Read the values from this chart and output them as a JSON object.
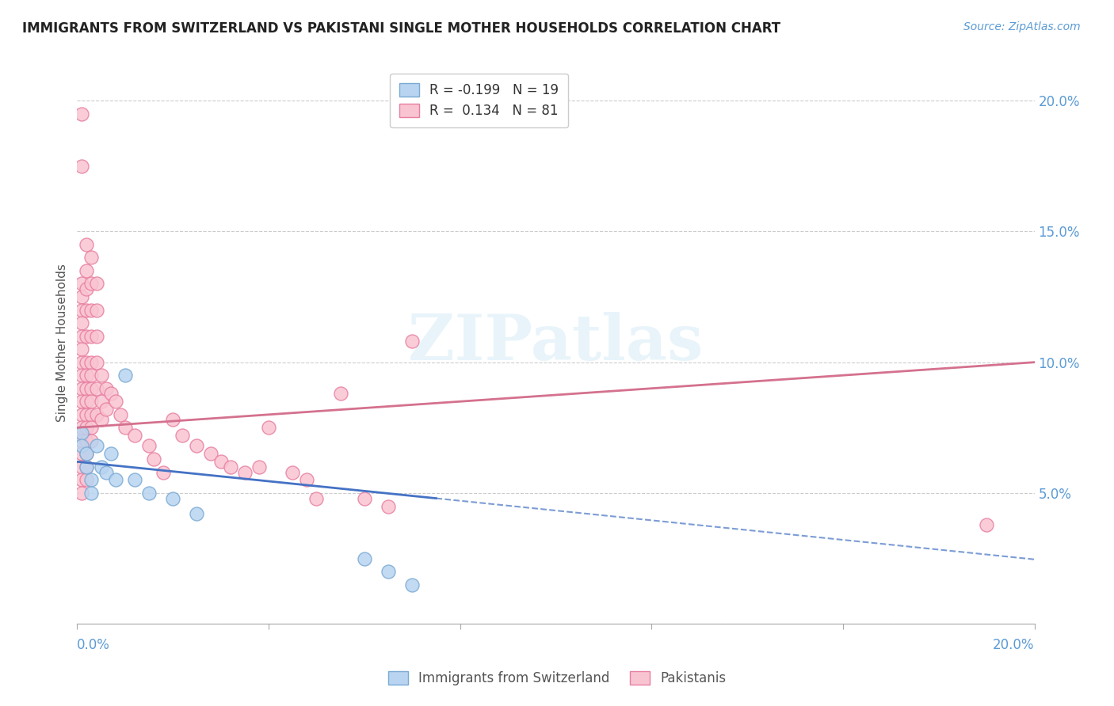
{
  "title": "IMMIGRANTS FROM SWITZERLAND VS PAKISTANI SINGLE MOTHER HOUSEHOLDS CORRELATION CHART",
  "source": "Source: ZipAtlas.com",
  "ylabel": "Single Mother Households",
  "xlim": [
    0.0,
    0.2
  ],
  "ylim": [
    0.0,
    0.215
  ],
  "watermark": "ZIPatlas",
  "swiss_color": "#b8d4f0",
  "swiss_edge_color": "#7aaad4",
  "pak_color": "#f9c4d2",
  "pak_edge_color": "#e87fa0",
  "swiss_line_color": "#4472c4",
  "pak_line_color": "#d4718e",
  "tick_color": "#5b9bd5",
  "swiss_R": -0.199,
  "swiss_N": 19,
  "pak_R": 0.134,
  "pak_N": 81,
  "swiss_points": [
    [
      0.001,
      0.073
    ],
    [
      0.001,
      0.068
    ],
    [
      0.002,
      0.065
    ],
    [
      0.002,
      0.06
    ],
    [
      0.003,
      0.055
    ],
    [
      0.003,
      0.05
    ],
    [
      0.004,
      0.068
    ],
    [
      0.005,
      0.06
    ],
    [
      0.006,
      0.058
    ],
    [
      0.007,
      0.065
    ],
    [
      0.008,
      0.055
    ],
    [
      0.01,
      0.095
    ],
    [
      0.012,
      0.055
    ],
    [
      0.015,
      0.05
    ],
    [
      0.02,
      0.048
    ],
    [
      0.025,
      0.042
    ],
    [
      0.06,
      0.025
    ],
    [
      0.065,
      0.02
    ],
    [
      0.07,
      0.015
    ]
  ],
  "pak_points": [
    [
      0.001,
      0.195
    ],
    [
      0.001,
      0.175
    ],
    [
      0.001,
      0.13
    ],
    [
      0.001,
      0.125
    ],
    [
      0.001,
      0.12
    ],
    [
      0.001,
      0.115
    ],
    [
      0.001,
      0.11
    ],
    [
      0.001,
      0.105
    ],
    [
      0.001,
      0.1
    ],
    [
      0.001,
      0.095
    ],
    [
      0.001,
      0.09
    ],
    [
      0.001,
      0.085
    ],
    [
      0.001,
      0.08
    ],
    [
      0.001,
      0.075
    ],
    [
      0.001,
      0.07
    ],
    [
      0.001,
      0.065
    ],
    [
      0.001,
      0.06
    ],
    [
      0.001,
      0.055
    ],
    [
      0.001,
      0.05
    ],
    [
      0.002,
      0.145
    ],
    [
      0.002,
      0.135
    ],
    [
      0.002,
      0.128
    ],
    [
      0.002,
      0.12
    ],
    [
      0.002,
      0.11
    ],
    [
      0.002,
      0.1
    ],
    [
      0.002,
      0.095
    ],
    [
      0.002,
      0.09
    ],
    [
      0.002,
      0.085
    ],
    [
      0.002,
      0.08
    ],
    [
      0.002,
      0.075
    ],
    [
      0.002,
      0.07
    ],
    [
      0.002,
      0.065
    ],
    [
      0.002,
      0.06
    ],
    [
      0.002,
      0.055
    ],
    [
      0.003,
      0.14
    ],
    [
      0.003,
      0.13
    ],
    [
      0.003,
      0.12
    ],
    [
      0.003,
      0.11
    ],
    [
      0.003,
      0.1
    ],
    [
      0.003,
      0.095
    ],
    [
      0.003,
      0.09
    ],
    [
      0.003,
      0.085
    ],
    [
      0.003,
      0.08
    ],
    [
      0.003,
      0.075
    ],
    [
      0.003,
      0.07
    ],
    [
      0.004,
      0.13
    ],
    [
      0.004,
      0.12
    ],
    [
      0.004,
      0.11
    ],
    [
      0.004,
      0.1
    ],
    [
      0.004,
      0.09
    ],
    [
      0.004,
      0.08
    ],
    [
      0.005,
      0.095
    ],
    [
      0.005,
      0.085
    ],
    [
      0.005,
      0.078
    ],
    [
      0.006,
      0.09
    ],
    [
      0.006,
      0.082
    ],
    [
      0.007,
      0.088
    ],
    [
      0.008,
      0.085
    ],
    [
      0.009,
      0.08
    ],
    [
      0.01,
      0.075
    ],
    [
      0.012,
      0.072
    ],
    [
      0.015,
      0.068
    ],
    [
      0.016,
      0.063
    ],
    [
      0.018,
      0.058
    ],
    [
      0.02,
      0.078
    ],
    [
      0.022,
      0.072
    ],
    [
      0.025,
      0.068
    ],
    [
      0.028,
      0.065
    ],
    [
      0.03,
      0.062
    ],
    [
      0.032,
      0.06
    ],
    [
      0.035,
      0.058
    ],
    [
      0.038,
      0.06
    ],
    [
      0.04,
      0.075
    ],
    [
      0.045,
      0.058
    ],
    [
      0.048,
      0.055
    ],
    [
      0.05,
      0.048
    ],
    [
      0.055,
      0.088
    ],
    [
      0.06,
      0.048
    ],
    [
      0.065,
      0.045
    ],
    [
      0.07,
      0.108
    ],
    [
      0.19,
      0.038
    ]
  ]
}
